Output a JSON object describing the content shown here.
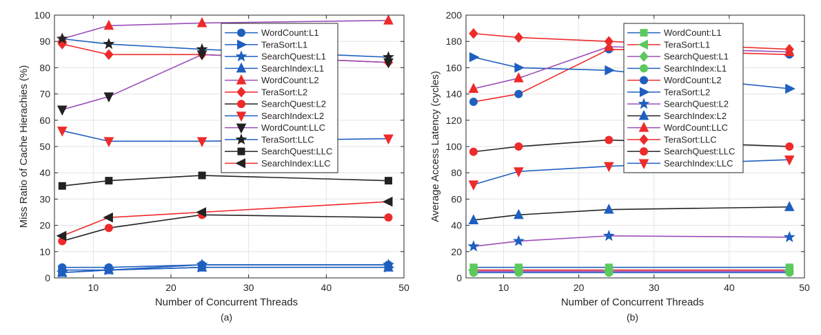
{
  "chart_data": [
    {
      "type": "line",
      "subtitle": "(a)",
      "xlabel": "Number of Concurrent Threads",
      "ylabel": "Miss Ratio of Cache Hierachies (%)",
      "xlim": [
        5,
        50
      ],
      "ylim": [
        0,
        100
      ],
      "xticks": [
        10,
        20,
        30,
        40,
        50
      ],
      "yticks": [
        0,
        10,
        20,
        30,
        40,
        50,
        60,
        70,
        80,
        90,
        100
      ],
      "grid": true,
      "legend_position": "top-right",
      "x": [
        6,
        12,
        24,
        48
      ],
      "series": [
        {
          "name": "WordCount:L1",
          "color": "#1f5fbf",
          "marker": "circle",
          "values": [
            4,
            4,
            5,
            5
          ]
        },
        {
          "name": "TeraSort:L1",
          "color": "#1f5fbf",
          "marker": "triangle-right",
          "values": [
            3,
            3,
            4,
            4
          ]
        },
        {
          "name": "SearchQuest:L1",
          "color": "#1f5fbf",
          "marker": "star",
          "values": [
            2,
            3,
            5,
            5
          ]
        },
        {
          "name": "SearchIndex:L1",
          "color": "#1f5fbf",
          "marker": "triangle-up",
          "values": [
            2,
            3,
            4,
            4
          ]
        },
        {
          "name": "WordCount:L2",
          "color": "#ee2a2a",
          "marker": "triangle-up",
          "lineColor": "#9b4db8",
          "values": [
            91,
            96,
            97,
            98
          ]
        },
        {
          "name": "TeraSort:L2",
          "color": "#ee2a2a",
          "marker": "diamond",
          "values": [
            89,
            85,
            85,
            82
          ]
        },
        {
          "name": "SearchQuest:L2",
          "color": "#ee2a2a",
          "marker": "circle",
          "lineColor": "#222222",
          "values": [
            14,
            19,
            24,
            23
          ]
        },
        {
          "name": "SearchIndex:L2",
          "color": "#ee2a2a",
          "marker": "triangle-down",
          "lineColor": "#1f5fbf",
          "values": [
            56,
            52,
            52,
            53
          ]
        },
        {
          "name": "WordCount:LLC",
          "color": "#222222",
          "marker": "triangle-down",
          "lineColor": "#9b4db8",
          "values": [
            64,
            69,
            85,
            82
          ]
        },
        {
          "name": "TeraSort:LLC",
          "color": "#222222",
          "marker": "star",
          "lineColor": "#1f5fbf",
          "values": [
            91,
            89,
            87,
            84
          ]
        },
        {
          "name": "SearchQuest:LLC",
          "color": "#222222",
          "marker": "square",
          "values": [
            35,
            37,
            39,
            37
          ]
        },
        {
          "name": "SearchIndex:LLC",
          "color": "#222222",
          "marker": "triangle-left",
          "lineColor": "#ee2a2a",
          "values": [
            16,
            23,
            25,
            29
          ]
        }
      ]
    },
    {
      "type": "line",
      "subtitle": "(b)",
      "xlabel": "Number of Concurrent Threads",
      "ylabel": "Average Access Latency (cycles)",
      "xlim": [
        5,
        50
      ],
      "ylim": [
        0,
        200
      ],
      "xticks": [
        10,
        20,
        30,
        40,
        50
      ],
      "yticks": [
        0,
        20,
        40,
        60,
        80,
        100,
        120,
        140,
        160,
        180,
        200
      ],
      "grid": true,
      "legend_position": "top-right",
      "x": [
        6,
        12,
        24,
        48
      ],
      "series": [
        {
          "name": "WordCount:L1",
          "color": "#5cc95c",
          "marker": "square",
          "lineColor": "#1f5fbf",
          "values": [
            8,
            8,
            8,
            8
          ]
        },
        {
          "name": "TeraSort:L1",
          "color": "#5cc95c",
          "marker": "triangle-left",
          "lineColor": "#ee2a2a",
          "values": [
            6,
            6,
            6,
            6
          ]
        },
        {
          "name": "SearchQuest:L1",
          "color": "#5cc95c",
          "marker": "diamond",
          "lineColor": "#9b4db8",
          "values": [
            5,
            5,
            5,
            5
          ]
        },
        {
          "name": "SearchIndex:L1",
          "color": "#5cc95c",
          "marker": "circle",
          "lineColor": "#1f5fbf",
          "values": [
            4,
            4,
            4,
            4
          ]
        },
        {
          "name": "WordCount:L2",
          "color": "#1f5fbf",
          "marker": "circle",
          "lineColor": "#ee2a2a",
          "values": [
            134,
            140,
            174,
            170
          ]
        },
        {
          "name": "TeraSort:L2",
          "color": "#1f5fbf",
          "marker": "triangle-right",
          "values": [
            168,
            160,
            158,
            144
          ]
        },
        {
          "name": "SearchQuest:L2",
          "color": "#1f5fbf",
          "marker": "star",
          "lineColor": "#9b4db8",
          "values": [
            24,
            28,
            32,
            31
          ]
        },
        {
          "name": "SearchIndex:L2",
          "color": "#1f5fbf",
          "marker": "triangle-up",
          "lineColor": "#222222",
          "values": [
            44,
            48,
            52,
            54
          ]
        },
        {
          "name": "WordCount:LLC",
          "color": "#ee2a2a",
          "marker": "triangle-up",
          "lineColor": "#9b4db8",
          "values": [
            144,
            152,
            176,
            172
          ]
        },
        {
          "name": "TeraSort:LLC",
          "color": "#ee2a2a",
          "marker": "diamond",
          "values": [
            186,
            183,
            180,
            174
          ]
        },
        {
          "name": "SearchQuest:LLC",
          "color": "#ee2a2a",
          "marker": "circle",
          "lineColor": "#222222",
          "values": [
            96,
            100,
            105,
            100
          ]
        },
        {
          "name": "SearchIndex:LLC",
          "color": "#ee2a2a",
          "marker": "triangle-down",
          "lineColor": "#1f5fbf",
          "values": [
            71,
            81,
            85,
            90
          ]
        }
      ]
    }
  ]
}
